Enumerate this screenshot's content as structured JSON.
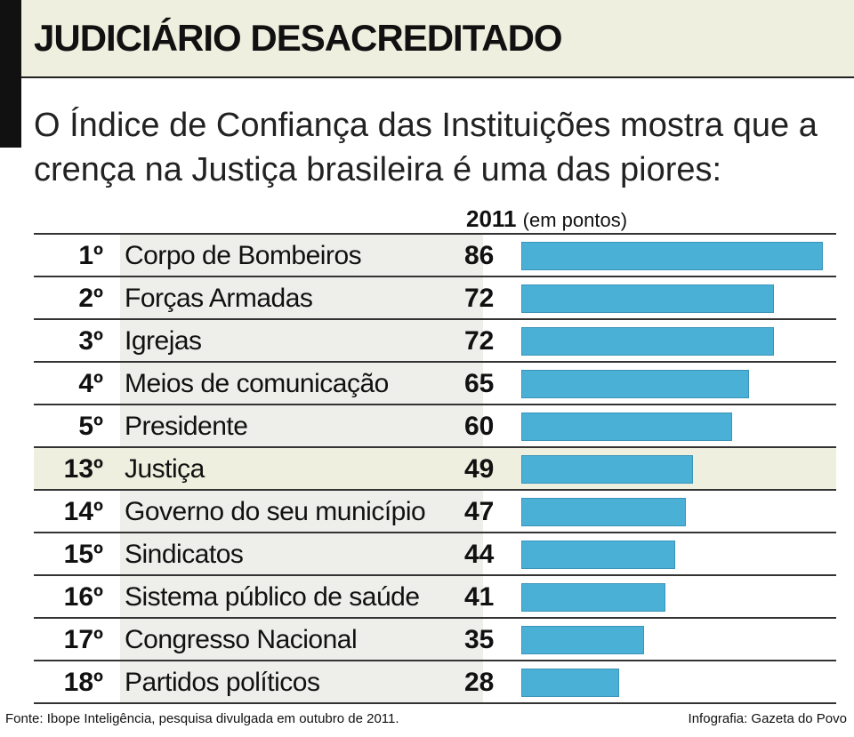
{
  "header": {
    "title": "JUDICIÁRIO DESACREDITADO",
    "subtitle": "O Índice de Confiança das Instituições mostra que a crença na Justiça brasileira é uma das piores:"
  },
  "colors": {
    "bar": "#4ab0d6",
    "header_background": "#efefdf",
    "highlight_row": "#efefdf"
  },
  "chart_data": {
    "type": "bar",
    "orientation": "horizontal",
    "series_label": "2011",
    "unit_label": "(em pontos)",
    "ranks": [
      "1º",
      "2º",
      "3º",
      "4º",
      "5º",
      "13º",
      "14º",
      "15º",
      "16º",
      "17º",
      "18º"
    ],
    "categories": [
      "Corpo de Bombeiros",
      "Forças Armadas",
      "Igrejas",
      "Meios de comunicação",
      "Presidente",
      "Justiça",
      "Governo do seu município",
      "Sindicatos",
      "Sistema público de saúde",
      "Congresso Nacional",
      "Partidos políticos"
    ],
    "values": [
      86,
      72,
      72,
      65,
      60,
      49,
      47,
      44,
      41,
      35,
      28
    ],
    "highlighted_category": "Justiça",
    "xlim": [
      0,
      86
    ]
  },
  "footer": {
    "source": "Fonte: Ibope Inteligência, pesquisa divulgada em outubro de 2011.",
    "credit": "Infografia: Gazeta do Povo"
  }
}
